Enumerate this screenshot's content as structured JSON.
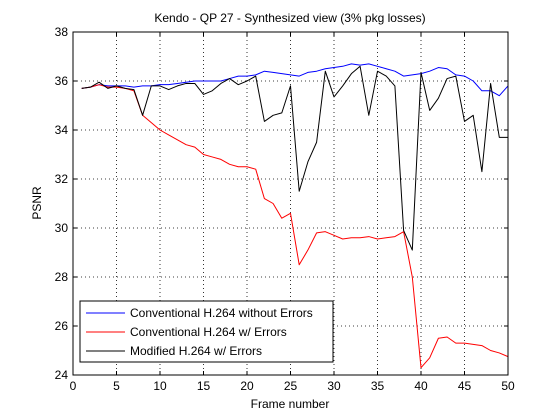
{
  "chart_data": {
    "type": "line",
    "title": "Kendo - QP 27 - Synthesized view (3% pkg losses)",
    "xlabel": "Frame number",
    "ylabel": "PSNR",
    "xlim": [
      0,
      50
    ],
    "ylim": [
      24,
      38
    ],
    "x_ticks": [
      0,
      5,
      10,
      15,
      20,
      25,
      30,
      35,
      40,
      45,
      50
    ],
    "y_ticks": [
      24,
      26,
      28,
      30,
      32,
      34,
      36,
      38
    ],
    "grid": true,
    "legend_position": "bottom-left",
    "x": [
      1,
      2,
      3,
      4,
      5,
      6,
      7,
      8,
      9,
      10,
      11,
      12,
      13,
      14,
      15,
      16,
      17,
      18,
      19,
      20,
      21,
      22,
      23,
      24,
      25,
      26,
      27,
      28,
      29,
      30,
      31,
      32,
      33,
      34,
      35,
      36,
      37,
      38,
      39,
      40,
      41,
      42,
      43,
      44,
      45,
      46,
      47,
      48,
      49,
      50
    ],
    "series": [
      {
        "name": "Conventional H.264 without Errors",
        "color": "#0000ff",
        "values": [
          35.7,
          35.75,
          35.85,
          35.8,
          35.8,
          35.8,
          35.75,
          35.8,
          35.8,
          35.85,
          35.85,
          35.9,
          35.95,
          36.0,
          36.0,
          36.0,
          36.0,
          36.1,
          36.2,
          36.2,
          36.25,
          36.4,
          36.35,
          36.3,
          36.25,
          36.2,
          36.35,
          36.4,
          36.5,
          36.55,
          36.6,
          36.7,
          36.65,
          36.7,
          36.6,
          36.5,
          36.4,
          36.2,
          36.25,
          36.3,
          36.4,
          36.55,
          36.5,
          36.25,
          36.2,
          36.0,
          35.6,
          35.6,
          35.4,
          35.8
        ]
      },
      {
        "name": "Conventional H.264 w/ Errors",
        "color": "#ff0000",
        "values": [
          35.7,
          35.75,
          35.85,
          35.75,
          35.75,
          35.7,
          35.6,
          34.6,
          34.3,
          34.0,
          33.8,
          33.6,
          33.4,
          33.3,
          33.0,
          32.9,
          32.8,
          32.6,
          32.5,
          32.5,
          32.4,
          31.2,
          31.0,
          30.4,
          30.6,
          28.5,
          29.1,
          29.8,
          29.85,
          29.7,
          29.55,
          29.6,
          29.6,
          29.65,
          29.55,
          29.6,
          29.65,
          29.85,
          28.0,
          24.3,
          24.7,
          25.5,
          25.55,
          25.3,
          25.3,
          25.25,
          25.2,
          25.0,
          24.9,
          24.75
        ]
      },
      {
        "name": "Modified H.264 w/ Errors",
        "color": "#000000",
        "values": [
          35.7,
          35.75,
          35.95,
          35.7,
          35.8,
          35.7,
          35.65,
          34.6,
          35.8,
          35.8,
          35.65,
          35.8,
          35.9,
          35.9,
          35.45,
          35.6,
          35.9,
          36.1,
          35.85,
          36.0,
          36.2,
          34.35,
          34.6,
          34.7,
          35.8,
          31.5,
          32.7,
          33.5,
          36.4,
          35.35,
          35.8,
          36.3,
          36.6,
          34.6,
          36.4,
          36.2,
          35.8,
          29.9,
          29.1,
          36.35,
          34.8,
          35.3,
          36.1,
          36.2,
          34.35,
          34.6,
          32.3,
          35.9,
          33.7,
          33.7
        ]
      }
    ]
  }
}
